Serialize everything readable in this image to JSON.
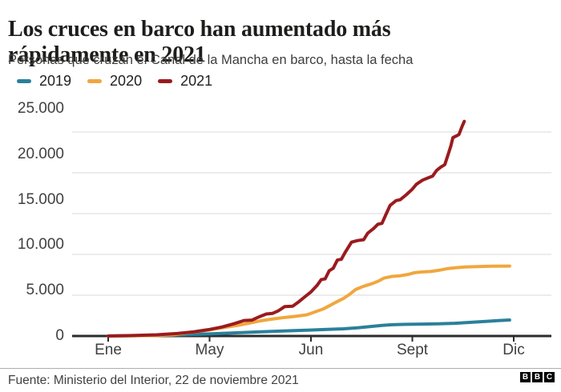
{
  "header": {
    "title": "Los cruces en barco han aumentado más rápidamente en 2021",
    "subtitle": "Personas que cruzan el Canal de la Mancha en barco, hasta la fecha"
  },
  "footer": {
    "source": "Fuente: Ministerio del Interior, 22 de noviembre 2021",
    "bbc_logo": [
      "B",
      "B",
      "C"
    ]
  },
  "colors": {
    "series_2019": "#2A809B",
    "series_2020": "#F0A73E",
    "series_2021": "#9A1B1E",
    "axis": "#2B2B2B",
    "grid": "#E1E1E1",
    "tick": "#2B2B2B"
  },
  "chart_data": {
    "type": "line",
    "title": "Los cruces en barco han aumentado más rápidamente en 2021",
    "subtitle": "Personas que cruzan el Canal de la Mancha en barco, hasta la fecha",
    "grid": "horizontal",
    "legend_position": "top",
    "x_axis": {
      "tick_labels": [
        "Ene",
        "May",
        "Jun",
        "Sept",
        "Dic"
      ],
      "tick_positions": [
        0,
        0.25,
        0.5,
        0.75,
        1
      ]
    },
    "y_axis": {
      "ticks": [
        0,
        5000,
        10000,
        15000,
        20000,
        25000
      ],
      "tick_labels": [
        "0",
        "5.000",
        "10.000",
        "15.000",
        "20.000",
        "25.000"
      ],
      "range": [
        0,
        26500
      ]
    },
    "series": [
      {
        "name": "2019",
        "color": "#2A809B",
        "points": [
          [
            0,
            0
          ],
          [
            0.12,
            80
          ],
          [
            0.18,
            150
          ],
          [
            0.25,
            250
          ],
          [
            0.31,
            380
          ],
          [
            0.37,
            500
          ],
          [
            0.43,
            620
          ],
          [
            0.49,
            720
          ],
          [
            0.54,
            800
          ],
          [
            0.58,
            880
          ],
          [
            0.615,
            1000
          ],
          [
            0.645,
            1150
          ],
          [
            0.675,
            1300
          ],
          [
            0.7,
            1380
          ],
          [
            0.735,
            1430
          ],
          [
            0.775,
            1460
          ],
          [
            0.815,
            1500
          ],
          [
            0.855,
            1560
          ],
          [
            0.895,
            1680
          ],
          [
            0.935,
            1800
          ],
          [
            0.965,
            1900
          ],
          [
            0.99,
            1960
          ]
        ]
      },
      {
        "name": "2020",
        "color": "#F0A73E",
        "points": [
          [
            0,
            0
          ],
          [
            0.12,
            60
          ],
          [
            0.16,
            150
          ],
          [
            0.19,
            350
          ],
          [
            0.22,
            550
          ],
          [
            0.25,
            750
          ],
          [
            0.28,
            1000
          ],
          [
            0.32,
            1300
          ],
          [
            0.35,
            1600
          ],
          [
            0.375,
            1850
          ],
          [
            0.4,
            2050
          ],
          [
            0.43,
            2250
          ],
          [
            0.46,
            2400
          ],
          [
            0.49,
            2600
          ],
          [
            0.51,
            2950
          ],
          [
            0.53,
            3300
          ],
          [
            0.545,
            3700
          ],
          [
            0.56,
            4100
          ],
          [
            0.58,
            4600
          ],
          [
            0.595,
            5100
          ],
          [
            0.61,
            5700
          ],
          [
            0.63,
            6100
          ],
          [
            0.65,
            6400
          ],
          [
            0.665,
            6700
          ],
          [
            0.68,
            7100
          ],
          [
            0.7,
            7300
          ],
          [
            0.72,
            7380
          ],
          [
            0.74,
            7550
          ],
          [
            0.755,
            7750
          ],
          [
            0.775,
            7850
          ],
          [
            0.795,
            7900
          ],
          [
            0.815,
            8050
          ],
          [
            0.835,
            8250
          ],
          [
            0.855,
            8350
          ],
          [
            0.88,
            8450
          ],
          [
            0.91,
            8500
          ],
          [
            0.945,
            8550
          ],
          [
            0.99,
            8570
          ]
        ]
      },
      {
        "name": "2021",
        "color": "#9A1B1E",
        "points": [
          [
            0,
            0
          ],
          [
            0.06,
            60
          ],
          [
            0.12,
            150
          ],
          [
            0.17,
            300
          ],
          [
            0.21,
            500
          ],
          [
            0.25,
            800
          ],
          [
            0.28,
            1100
          ],
          [
            0.31,
            1500
          ],
          [
            0.335,
            1900
          ],
          [
            0.355,
            1950
          ],
          [
            0.37,
            2300
          ],
          [
            0.39,
            2700
          ],
          [
            0.405,
            2760
          ],
          [
            0.42,
            3100
          ],
          [
            0.435,
            3600
          ],
          [
            0.455,
            3660
          ],
          [
            0.47,
            4200
          ],
          [
            0.485,
            4800
          ],
          [
            0.5,
            5400
          ],
          [
            0.515,
            6200
          ],
          [
            0.525,
            6900
          ],
          [
            0.535,
            7000
          ],
          [
            0.545,
            8000
          ],
          [
            0.555,
            8300
          ],
          [
            0.565,
            9300
          ],
          [
            0.575,
            9400
          ],
          [
            0.585,
            10300
          ],
          [
            0.6,
            11500
          ],
          [
            0.615,
            11700
          ],
          [
            0.63,
            11800
          ],
          [
            0.64,
            12600
          ],
          [
            0.655,
            13200
          ],
          [
            0.665,
            13700
          ],
          [
            0.675,
            13800
          ],
          [
            0.685,
            14900
          ],
          [
            0.695,
            16000
          ],
          [
            0.71,
            16600
          ],
          [
            0.72,
            16700
          ],
          [
            0.735,
            17300
          ],
          [
            0.75,
            18000
          ],
          [
            0.76,
            18600
          ],
          [
            0.775,
            19100
          ],
          [
            0.79,
            19400
          ],
          [
            0.8,
            19600
          ],
          [
            0.81,
            20300
          ],
          [
            0.82,
            20700
          ],
          [
            0.83,
            21000
          ],
          [
            0.838,
            22200
          ],
          [
            0.845,
            23300
          ],
          [
            0.85,
            24300
          ],
          [
            0.858,
            24500
          ],
          [
            0.865,
            24700
          ],
          [
            0.872,
            25600
          ],
          [
            0.878,
            26300
          ]
        ]
      }
    ]
  }
}
